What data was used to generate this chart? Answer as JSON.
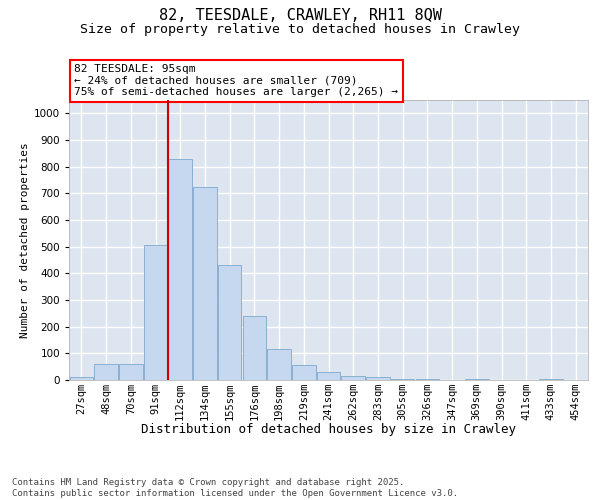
{
  "title": "82, TEESDALE, CRAWLEY, RH11 8QW",
  "subtitle": "Size of property relative to detached houses in Crawley",
  "xlabel": "Distribution of detached houses by size in Crawley",
  "ylabel": "Number of detached properties",
  "categories": [
    "27sqm",
    "48sqm",
    "70sqm",
    "91sqm",
    "112sqm",
    "134sqm",
    "155sqm",
    "176sqm",
    "198sqm",
    "219sqm",
    "241sqm",
    "262sqm",
    "283sqm",
    "305sqm",
    "326sqm",
    "347sqm",
    "369sqm",
    "390sqm",
    "411sqm",
    "433sqm",
    "454sqm"
  ],
  "bar_heights": [
    10,
    60,
    60,
    505,
    830,
    725,
    430,
    240,
    115,
    55,
    30,
    15,
    10,
    5,
    5,
    0,
    5,
    0,
    0,
    5,
    0
  ],
  "bar_color": "#c5d8f0",
  "bar_edgecolor": "#7fa8cc",
  "vline_index": 3.5,
  "vline_color": "#cc0000",
  "annotation_text": "82 TEESDALE: 95sqm\n← 24% of detached houses are smaller (709)\n75% of semi-detached houses are larger (2,265) →",
  "ylim": [
    0,
    1050
  ],
  "yticks": [
    0,
    100,
    200,
    300,
    400,
    500,
    600,
    700,
    800,
    900,
    1000
  ],
  "bg_color": "#dde5f0",
  "grid_color": "white",
  "footer": "Contains HM Land Registry data © Crown copyright and database right 2025.\nContains public sector information licensed under the Open Government Licence v3.0.",
  "title_fontsize": 11,
  "subtitle_fontsize": 9.5,
  "xlabel_fontsize": 9,
  "ylabel_fontsize": 8,
  "tick_fontsize": 7.5,
  "ann_fontsize": 8,
  "footer_fontsize": 6.5
}
